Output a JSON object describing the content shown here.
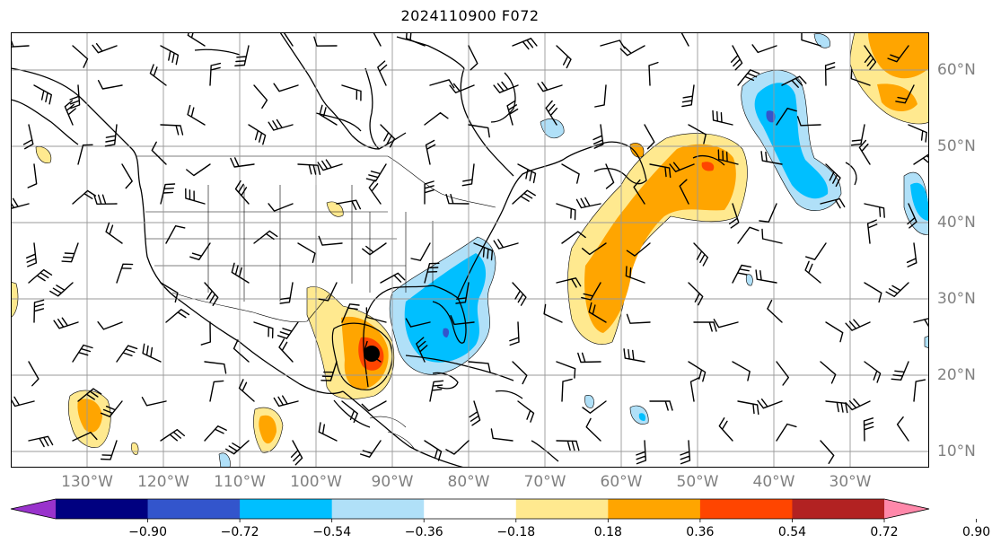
{
  "header": {
    "title": "2024110900 F072"
  },
  "axes": {
    "lon_labels": [
      "130°W",
      "120°W",
      "110°W",
      "100°W",
      "90°W",
      "80°W",
      "70°W",
      "60°W",
      "50°W",
      "40°W",
      "30°W"
    ],
    "lat_labels": [
      "60°N",
      "50°N",
      "40°N",
      "30°N",
      "20°N",
      "10°N"
    ]
  },
  "colorbar": {
    "colors": [
      "#9933cc",
      "#000080",
      "#3355cc",
      "#00bfff",
      "#b0e0f8",
      "#ffffff",
      "#ffe98f",
      "#ffa500",
      "#ff4500",
      "#b22222",
      "#ff88aa"
    ],
    "tick_labels": [
      "−0.90",
      "−0.72",
      "−0.54",
      "−0.36",
      "−0.18",
      "0.18",
      "0.36",
      "0.54",
      "0.72",
      "0.90"
    ]
  },
  "map": {
    "marker": "storm-center-dot",
    "grid_color": "#999999"
  }
}
